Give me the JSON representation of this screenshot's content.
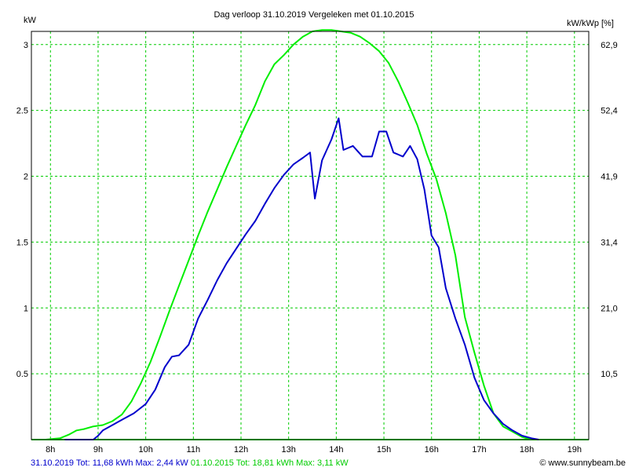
{
  "chart_data": {
    "type": "line",
    "title": "Dag  verloop 31.10.2019   Vergeleken met 01.10.2015",
    "ylabel_left": "kW",
    "ylabel_right": "kW/kWp [%]",
    "x_unit": "hour",
    "xlim": [
      7.6,
      19.3
    ],
    "ylim": [
      0,
      3.1
    ],
    "grid": true,
    "x_ticks": [
      {
        "value": 8,
        "label": "8h"
      },
      {
        "value": 9,
        "label": "9h"
      },
      {
        "value": 10,
        "label": "10h"
      },
      {
        "value": 11,
        "label": "11h"
      },
      {
        "value": 12,
        "label": "12h"
      },
      {
        "value": 13,
        "label": "13h"
      },
      {
        "value": 14,
        "label": "14h"
      },
      {
        "value": 15,
        "label": "15h"
      },
      {
        "value": 16,
        "label": "16h"
      },
      {
        "value": 17,
        "label": "17h"
      },
      {
        "value": 18,
        "label": "18h"
      },
      {
        "value": 19,
        "label": "19h"
      }
    ],
    "y_ticks_left": [
      {
        "value": 0.5,
        "label": "0.5"
      },
      {
        "value": 1,
        "label": "1"
      },
      {
        "value": 1.5,
        "label": "1.5"
      },
      {
        "value": 2,
        "label": "2"
      },
      {
        "value": 2.5,
        "label": "2.5"
      },
      {
        "value": 3,
        "label": "3"
      }
    ],
    "y_ticks_right": [
      {
        "value": 0.5,
        "label": "10,5"
      },
      {
        "value": 1,
        "label": "21,0"
      },
      {
        "value": 1.5,
        "label": "31,4"
      },
      {
        "value": 2,
        "label": "41,9"
      },
      {
        "value": 2.5,
        "label": "52,4"
      },
      {
        "value": 3,
        "label": "62,9"
      }
    ],
    "series": [
      {
        "color": "#00ee00",
        "x": [
          7.9,
          8.2,
          8.4,
          8.55,
          8.7,
          8.9,
          9.1,
          9.3,
          9.5,
          9.7,
          9.9,
          10.1,
          10.3,
          10.5,
          10.7,
          10.9,
          11.1,
          11.3,
          11.5,
          11.7,
          11.9,
          12.1,
          12.3,
          12.5,
          12.7,
          12.9,
          13.1,
          13.3,
          13.5,
          13.7,
          13.9,
          14.1,
          14.3,
          14.5,
          14.7,
          14.9,
          15.1,
          15.3,
          15.5,
          15.7,
          15.9,
          16.1,
          16.3,
          16.5,
          16.7,
          16.9,
          17.1,
          17.3,
          17.5,
          17.7,
          17.9,
          18.1,
          18.3,
          18.5,
          18.7,
          18.9,
          19.1
        ],
        "y": [
          0,
          0.01,
          0.04,
          0.07,
          0.08,
          0.1,
          0.11,
          0.14,
          0.19,
          0.29,
          0.43,
          0.59,
          0.78,
          0.98,
          1.17,
          1.36,
          1.55,
          1.73,
          1.9,
          2.07,
          2.23,
          2.39,
          2.54,
          2.72,
          2.85,
          2.92,
          3.0,
          3.06,
          3.1,
          3.11,
          3.11,
          3.1,
          3.09,
          3.06,
          3.01,
          2.95,
          2.86,
          2.72,
          2.56,
          2.39,
          2.17,
          1.98,
          1.72,
          1.4,
          0.93,
          0.66,
          0.41,
          0.2,
          0.1,
          0.06,
          0.02,
          0.0,
          0,
          0,
          0,
          0,
          0
        ]
      },
      {
        "color": "#0000cc",
        "x": [
          8.3,
          8.9,
          9.0,
          9.1,
          9.3,
          9.5,
          9.75,
          10.0,
          10.2,
          10.4,
          10.55,
          10.7,
          10.9,
          11.1,
          11.3,
          11.5,
          11.7,
          11.9,
          12.1,
          12.3,
          12.5,
          12.7,
          12.9,
          13.1,
          13.3,
          13.45,
          13.55,
          13.7,
          13.9,
          14.05,
          14.15,
          14.35,
          14.55,
          14.75,
          14.9,
          15.05,
          15.2,
          15.4,
          15.55,
          15.7,
          15.85,
          16.0,
          16.15,
          16.3,
          16.5,
          16.7,
          16.9,
          17.1,
          17.3,
          17.5,
          17.7,
          17.9,
          18.1,
          18.25
        ],
        "y": [
          0,
          0.0,
          0.03,
          0.07,
          0.11,
          0.15,
          0.2,
          0.27,
          0.38,
          0.55,
          0.63,
          0.64,
          0.72,
          0.92,
          1.06,
          1.21,
          1.34,
          1.45,
          1.56,
          1.66,
          1.79,
          1.91,
          2.01,
          2.09,
          2.14,
          2.18,
          1.83,
          2.12,
          2.28,
          2.44,
          2.2,
          2.23,
          2.15,
          2.15,
          2.34,
          2.34,
          2.18,
          2.15,
          2.23,
          2.13,
          1.9,
          1.55,
          1.46,
          1.15,
          0.92,
          0.72,
          0.47,
          0.3,
          0.2,
          0.12,
          0.07,
          0.03,
          0.01,
          0
        ]
      }
    ],
    "footer": {
      "series1_label": "31.10.2019 Tot: 11,68 kWh Max: 2,44 kW",
      "series2_label": "01.10.2015 Tot: 18,81 kWh Max: 3,11 kW",
      "credit": "© www.sunnybeam.be",
      "series1_color": "#0000cc",
      "series2_color": "#00cc00"
    }
  }
}
